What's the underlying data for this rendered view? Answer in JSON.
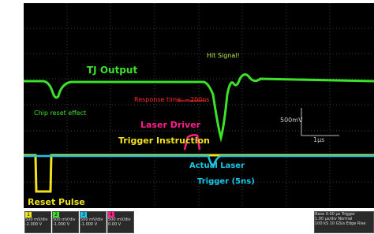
{
  "annotations": {
    "tj_output": "TJ Output",
    "chip_reset": "Chip reset effect",
    "hit_signal": "Hit Signal!",
    "response_time": "Response time: ~200ns",
    "laser_driver_1": "Laser Driver",
    "laser_driver_2": "Trigger Instruction",
    "volt_scale": "500mV",
    "time_scale": "1µs",
    "actual_laser_1": "Actual Laser",
    "actual_laser_2": "Trigger (5ns)",
    "reset_pulse": "Reset Pulse"
  },
  "channels": [
    {
      "id": "1",
      "scale": "500 mV/div",
      "offset": "-2.000 V"
    },
    {
      "id": "2",
      "scale": "500 mV/div",
      "offset": "-1.000 V"
    },
    {
      "id": "3",
      "scale": "500 mV/div",
      "offset": "-1.000 V"
    },
    {
      "id": "4",
      "scale": "500 mV/div",
      "offset": "0.00 V"
    }
  ],
  "status": {
    "base_label": "Base",
    "base_value": "0.00 µs",
    "trigger_label": "Trigger",
    "timebase": "1.00 µs/div",
    "mode": "Normal",
    "samples": "100 kS",
    "rate": "10 GS/s",
    "edge": "Edge",
    "slope": "Rise"
  }
}
